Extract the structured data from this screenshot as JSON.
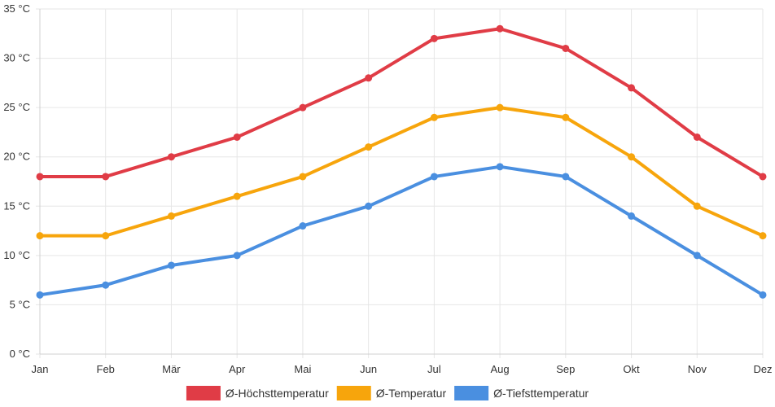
{
  "chart_data": {
    "type": "line",
    "title": "",
    "xlabel": "",
    "ylabel": "",
    "categories": [
      "Jan",
      "Feb",
      "Mär",
      "Apr",
      "Mai",
      "Jun",
      "Jul",
      "Aug",
      "Sep",
      "Okt",
      "Nov",
      "Dez"
    ],
    "ylim": [
      0,
      35
    ],
    "yticks": [
      0,
      5,
      10,
      15,
      20,
      25,
      30,
      35
    ],
    "y_unit": "°C",
    "grid": true,
    "legend_position": "bottom",
    "series": [
      {
        "name": "Ø-Höchsttemperatur",
        "color": "#e03c46",
        "values": [
          18,
          18,
          20,
          22,
          25,
          28,
          32,
          33,
          31,
          27,
          22,
          18
        ]
      },
      {
        "name": "Ø-Temperatur",
        "color": "#f7a50c",
        "values": [
          12,
          12,
          14,
          16,
          18,
          21,
          24,
          25,
          24,
          20,
          15,
          12
        ]
      },
      {
        "name": "Ø-Tiefsttemperatur",
        "color": "#4a8fe0",
        "values": [
          6,
          7,
          9,
          10,
          13,
          15,
          18,
          19,
          18,
          14,
          10,
          6
        ]
      }
    ]
  }
}
